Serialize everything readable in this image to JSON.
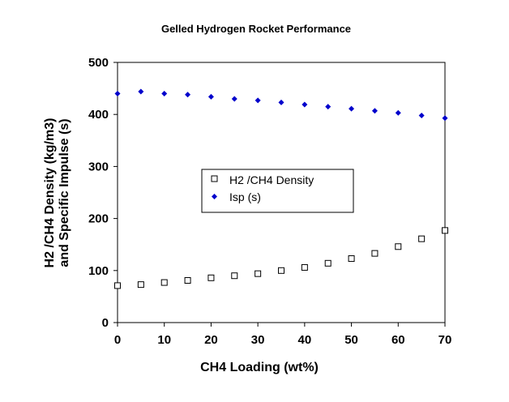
{
  "chart_data": {
    "type": "scatter",
    "title": "Gelled Hydrogen Rocket Performance",
    "xlabel": "CH4 Loading (wt%)",
    "ylabel_lines": [
      "H2 /CH4 Density (kg/m3)",
      "and Specific Impulse (s)"
    ],
    "xlim": [
      0,
      70
    ],
    "ylim": [
      0,
      500
    ],
    "x_ticks": [
      0,
      10,
      20,
      30,
      40,
      50,
      60,
      70
    ],
    "y_ticks": [
      0,
      100,
      200,
      300,
      400,
      500
    ],
    "x_tick_labels": [
      "0",
      "10",
      "20",
      "30",
      "40",
      "50",
      "60",
      "70"
    ],
    "y_tick_labels": [
      "0",
      "100",
      "200",
      "300",
      "400",
      "500"
    ],
    "legend_position": "center",
    "series": [
      {
        "name": "H2 /CH4 Density",
        "marker": "open-square",
        "color": "#000000",
        "x": [
          0,
          5,
          10,
          15,
          20,
          25,
          30,
          35,
          40,
          45,
          50,
          55,
          60,
          65,
          70
        ],
        "y": [
          71,
          73,
          77,
          81,
          86,
          90,
          94,
          100,
          106,
          114,
          123,
          133,
          146,
          161,
          177
        ]
      },
      {
        "name": "Isp (s)",
        "marker": "diamond",
        "color": "#0000CC",
        "x": [
          0,
          5,
          10,
          15,
          20,
          25,
          30,
          35,
          40,
          45,
          50,
          55,
          60,
          65,
          70
        ],
        "y": [
          440,
          444,
          440,
          438,
          434,
          430,
          427,
          423,
          419,
          415,
          411,
          407,
          403,
          398,
          393
        ]
      }
    ]
  }
}
